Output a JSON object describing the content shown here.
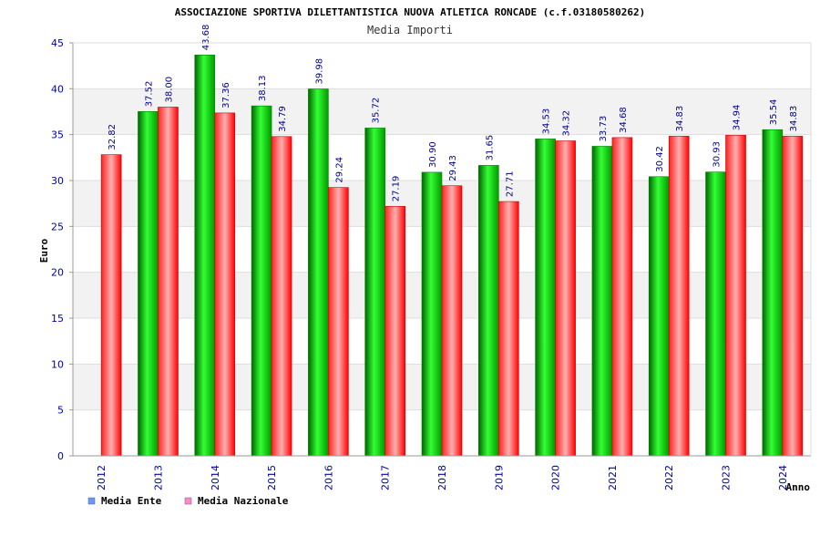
{
  "chart_data": {
    "type": "bar",
    "title": "ASSOCIAZIONE SPORTIVA DILETTANTISTICA NUOVA ATLETICA RONCADE (c.f.03180580262)",
    "subtitle": "Media Importi",
    "xlabel": "Anno",
    "ylabel": "Euro",
    "ylim": [
      0,
      45
    ],
    "yticks": [
      "0",
      "5",
      "10",
      "15",
      "20",
      "25",
      "30",
      "35",
      "40",
      "45"
    ],
    "categories": [
      "2012",
      "2013",
      "2014",
      "2015",
      "2016",
      "2017",
      "2018",
      "2019",
      "2020",
      "2021",
      "2022",
      "2023",
      "2024"
    ],
    "series": [
      {
        "name": "Media Ente",
        "color": "#00cc00",
        "legend_color": "#6699ff",
        "values": [
          null,
          37.52,
          43.68,
          38.13,
          39.98,
          35.72,
          30.9,
          31.65,
          34.53,
          33.73,
          30.42,
          30.93,
          35.54
        ],
        "labels": [
          "",
          "37.52",
          "43.68",
          "38.13",
          "39.98",
          "35.72",
          "30.90",
          "31.65",
          "34.53",
          "33.73",
          "30.42",
          "30.93",
          "35.54"
        ]
      },
      {
        "name": "Media Nazionale",
        "color": "#ff1a1a",
        "legend_color": "#ff88cc",
        "values": [
          32.82,
          38.0,
          37.36,
          34.79,
          29.24,
          27.19,
          29.43,
          27.71,
          34.32,
          34.68,
          34.83,
          34.94,
          34.83
        ],
        "labels": [
          "32.82",
          "38.00",
          "37.36",
          "34.79",
          "29.24",
          "27.19",
          "29.43",
          "27.71",
          "34.32",
          "34.68",
          "34.83",
          "34.94",
          "34.83"
        ]
      }
    ],
    "grid": true,
    "legend_position": "bottom-left"
  }
}
